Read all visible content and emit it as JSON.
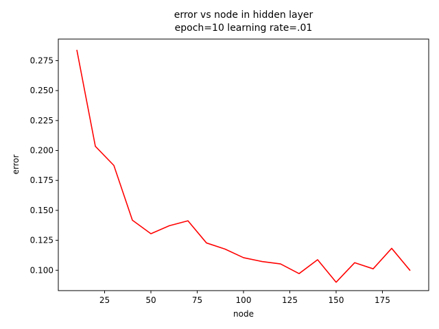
{
  "chart_data": {
    "type": "line",
    "title": "error vs node in hidden layer",
    "subtitle": "epoch=10 learning rate=.01",
    "xlabel": "node",
    "ylabel": "error",
    "xlim": [
      0,
      200
    ],
    "ylim": [
      0.083,
      0.293
    ],
    "xticks": [
      25,
      50,
      75,
      100,
      125,
      150,
      175
    ],
    "xtick_labels": [
      "25",
      "50",
      "75",
      "100",
      "125",
      "150",
      "175"
    ],
    "yticks": [
      0.1,
      0.125,
      0.15,
      0.175,
      0.2,
      0.225,
      0.25,
      0.275
    ],
    "ytick_labels": [
      "0.100",
      "0.125",
      "0.150",
      "0.175",
      "0.200",
      "0.225",
      "0.250",
      "0.275"
    ],
    "grid": false,
    "series": [
      {
        "color": "#ff0000",
        "x": [
          10,
          20,
          30,
          40,
          50,
          60,
          70,
          80,
          90,
          100,
          110,
          120,
          130,
          140,
          150,
          160,
          170,
          180,
          190
        ],
        "y": [
          0.284,
          0.2035,
          0.1875,
          0.1418,
          0.1305,
          0.1372,
          0.1413,
          0.1228,
          0.1177,
          0.1105,
          0.1073,
          0.1053,
          0.0972,
          0.1088,
          0.09,
          0.1063,
          0.1012,
          0.1183,
          0.0997
        ]
      }
    ]
  }
}
